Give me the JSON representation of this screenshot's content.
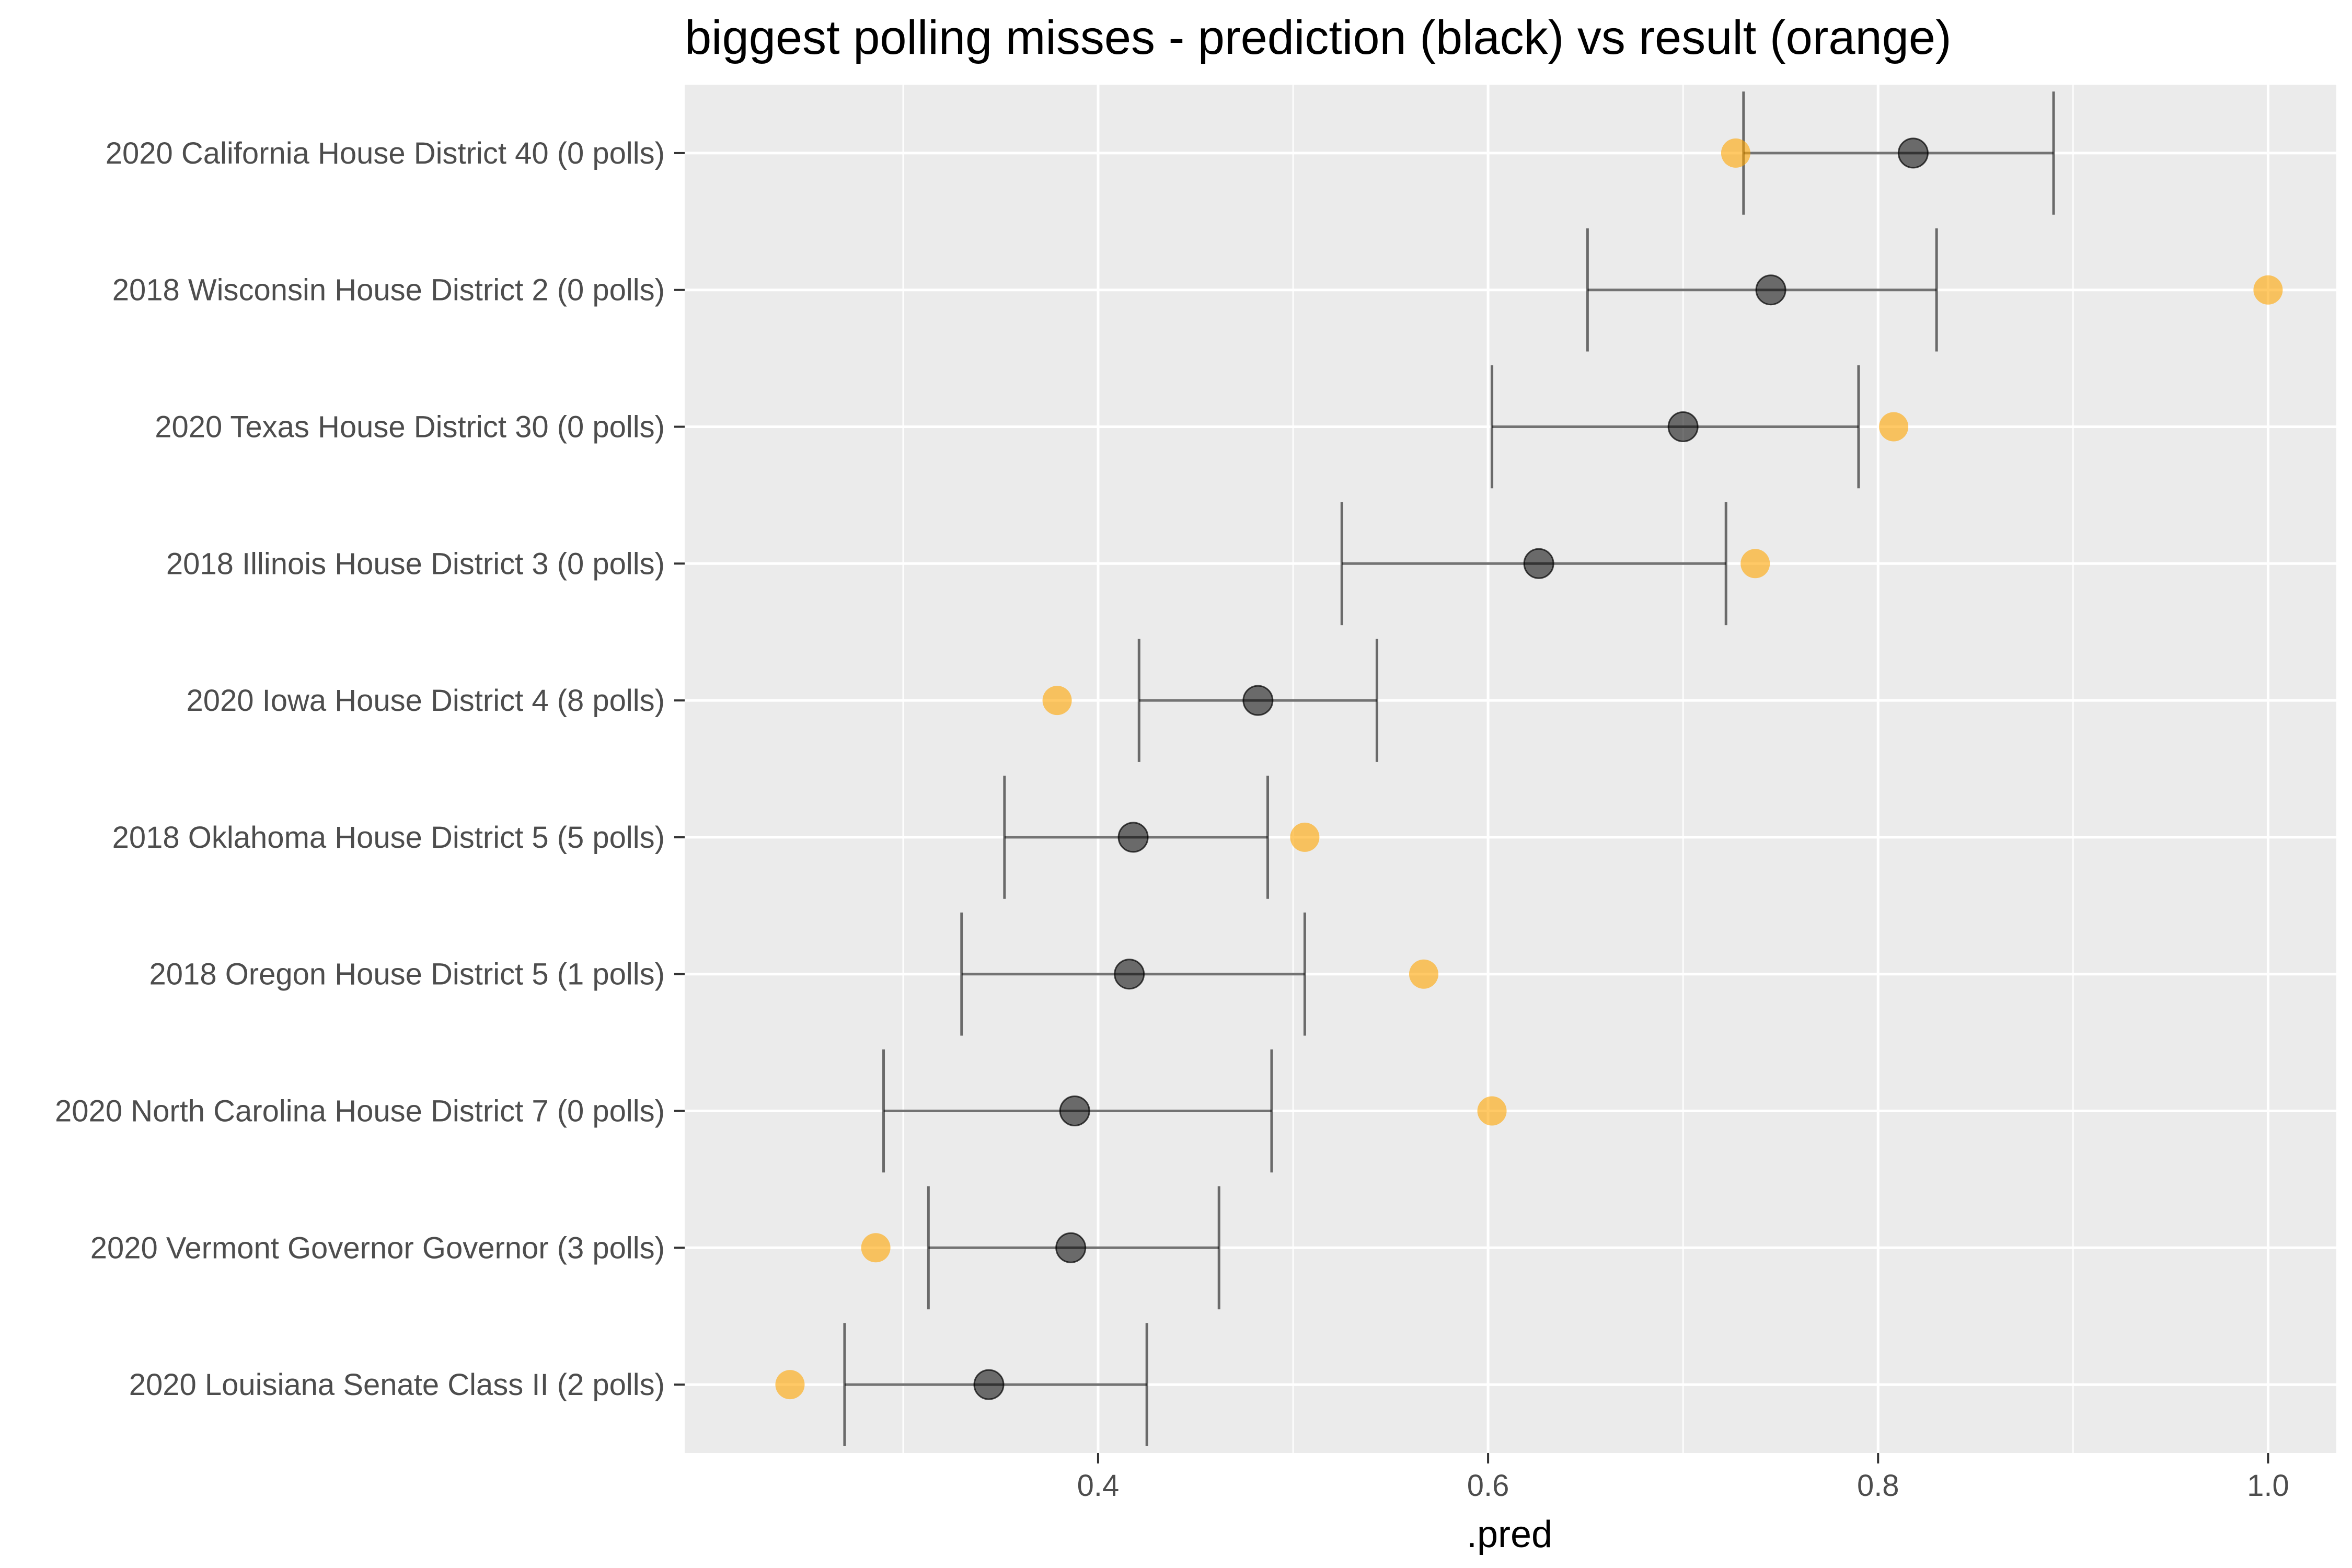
{
  "chart_data": {
    "type": "scatter",
    "title": "biggest polling misses - prediction (black) vs result (orange)",
    "xlabel": ".pred",
    "ylabel": "",
    "xlim": [
      0.188,
      1.035
    ],
    "xticks": [
      0.4,
      0.6,
      0.8,
      1.0
    ],
    "xtick_labels": [
      "0.4",
      "0.6",
      "0.8",
      "1.0"
    ],
    "grid": true,
    "legend": "none",
    "categories": [
      "2020 California House District 40 (0 polls)",
      "2018 Wisconsin House District 2 (0 polls)",
      "2020 Texas House District 30 (0 polls)",
      "2018 Illinois House District 3 (0 polls)",
      "2020 Iowa House District 4 (8 polls)",
      "2018 Oklahoma House District 5 (5 polls)",
      "2018 Oregon House District 5 (1 polls)",
      "2020 North Carolina House District 7 (0 polls)",
      "2020 Vermont Governor Governor (3 polls)",
      "2020 Louisiana Senate Class II (2 polls)"
    ],
    "prediction": [
      0.818,
      0.745,
      0.7,
      0.626,
      0.482,
      0.418,
      0.416,
      0.388,
      0.386,
      0.344
    ],
    "lower": [
      0.731,
      0.651,
      0.602,
      0.525,
      0.421,
      0.352,
      0.33,
      0.29,
      0.313,
      0.27
    ],
    "upper": [
      0.89,
      0.83,
      0.79,
      0.722,
      0.543,
      0.487,
      0.506,
      0.489,
      0.462,
      0.425
    ],
    "result": [
      0.727,
      1.0,
      0.808,
      0.737,
      0.379,
      0.506,
      0.567,
      0.602,
      0.286,
      0.242
    ],
    "colors": {
      "prediction": "#000000",
      "result": "#ffa500",
      "panel_bg": "#ebebeb",
      "grid": "#ffffff",
      "errorbar": "#000000"
    }
  }
}
